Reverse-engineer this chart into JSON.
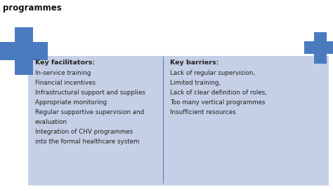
{
  "bg_color": "#ffffff",
  "box_color": "#c5d0e6",
  "cross_color": "#4a7bbf",
  "line_color": "#6080b0",
  "text_color": "#222222",
  "left_header": "Key facilitators:",
  "left_items": [
    "In-service training",
    "Financial incentives",
    "Infrastructural support and supplies",
    "Appropriate monitoring",
    "Regular supportive supervision and",
    "evaluation",
    "Integration of CHV programmes",
    "into the formal healthcare system"
  ],
  "right_header": "Key barriers:",
  "right_items": [
    "Lack of regular supervision,",
    "Limited training,",
    "Lack of clear definition of roles,",
    "Too many vertical programmes",
    "Insufficient resources"
  ],
  "font_size_header": 6.8,
  "font_size_item": 6.3
}
